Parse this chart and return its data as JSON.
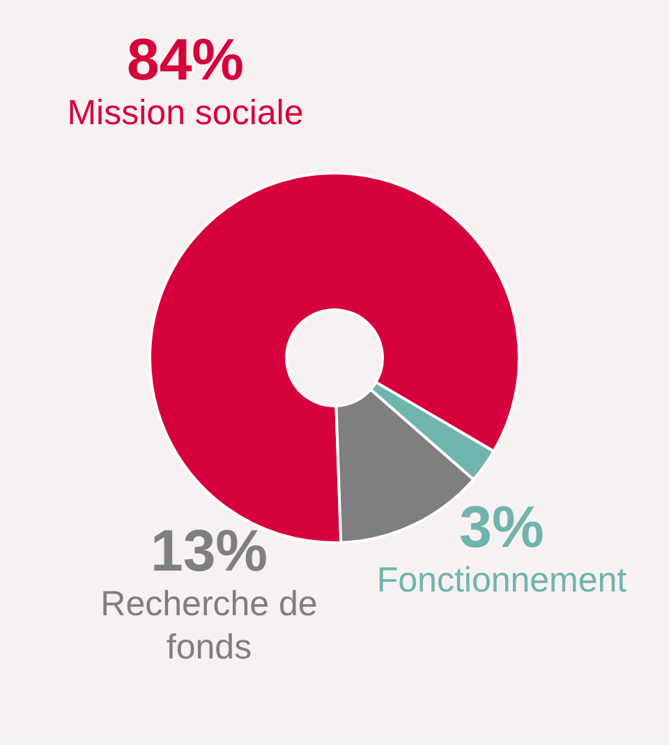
{
  "chart_data": {
    "type": "donut",
    "categories": [
      "Mission sociale",
      "Fonctionnement",
      "Recherche de fonds"
    ],
    "values": [
      84,
      3,
      13
    ],
    "value_labels": [
      "84%",
      "3%",
      "13%"
    ],
    "colors": [
      "#d6003c",
      "#6fb5ae",
      "#7f7f7f"
    ],
    "legend": false
  }
}
